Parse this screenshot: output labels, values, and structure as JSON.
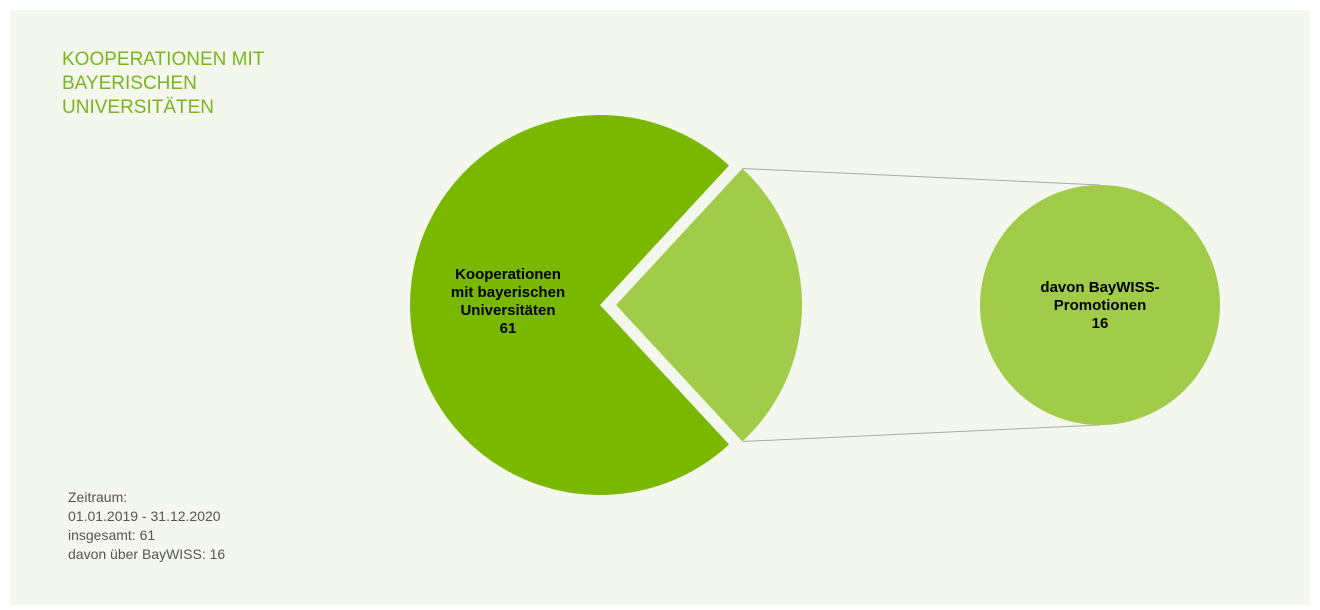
{
  "title": "KOOPERATIONEN MIT BAYERISCHEN UNIVERSITÄTEN",
  "note": [
    "Zeitraum:",
    "01.01.2019 - 31.12.2020",
    "insgesamt: 61",
    "davon über BayWISS: 16"
  ],
  "chart_data": {
    "type": "pie-of-pie",
    "main": {
      "label": [
        "Kooperationen",
        "mit bayerischen",
        "Universitäten"
      ],
      "value": 61,
      "color": "#7ab800"
    },
    "sub": {
      "label": [
        "davon BayWISS-",
        "Promotionen"
      ],
      "value": 16,
      "color": "#a1cc4a"
    }
  }
}
